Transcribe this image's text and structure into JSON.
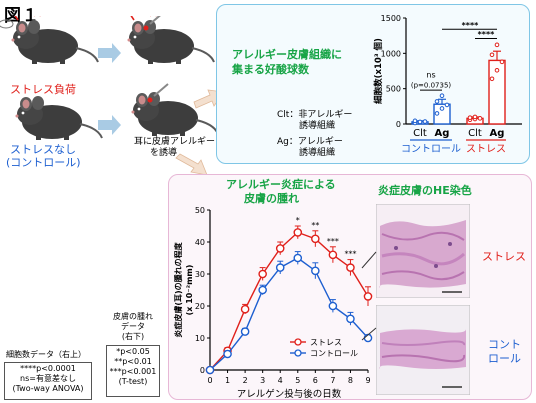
{
  "figure_label": "図１",
  "left_panel": {
    "stress_label": "ストレス負荷",
    "control_label_1": "ストレスなし",
    "control_label_2": "(コントロール)",
    "induction_label_1": "耳に皮膚アレルギー",
    "induction_label_2": "を誘導"
  },
  "top_panel": {
    "title_1": "アレルギー皮膚組織に",
    "title_2": "集まる好酸球数",
    "clt_def_1": "Clt：非アレルギー",
    "clt_def_2": "誘導組織",
    "ag_def_1": "Ag：アレルギー",
    "ag_def_2": "誘導組織",
    "chart_data": {
      "type": "bar",
      "ylabel": "細胞数(x10³ 個)",
      "ylim": [
        0,
        1500
      ],
      "yticks": [
        "0",
        "500",
        "1000",
        "1500"
      ],
      "groups": [
        {
          "name": "コントロール",
          "color": "#1d5fd0",
          "categories": [
            "Clt",
            "Ag"
          ],
          "values": [
            30,
            280
          ],
          "errors": [
            15,
            70
          ],
          "points": [
            [
              15,
              25,
              35,
              45,
              30
            ],
            [
              150,
              220,
              270,
              320,
              400
            ]
          ]
        },
        {
          "name": "ストレス",
          "color": "#e0201b",
          "categories": [
            "Clt",
            "Ag"
          ],
          "values": [
            80,
            900
          ],
          "errors": [
            20,
            130
          ],
          "points": [
            [
              60,
              70,
              80,
              90,
              100
            ],
            [
              640,
              760,
              880,
              980,
              1120
            ]
          ]
        }
      ],
      "annotations": {
        "ns": "ns",
        "ns_p": "(p=0.0735)",
        "sig_1": "****",
        "sig_2": "****"
      }
    }
  },
  "bottom_panel": {
    "title_1": "アレルギー炎症による",
    "title_2": "皮膚の腫れ",
    "he_title": "炎症皮膚のHE染色",
    "he_stress": "ストレス",
    "he_control_1": "コント",
    "he_control_2": "ロール",
    "chart_data": {
      "type": "line",
      "ylabel_1": "炎症皮膚(耳)の腫れの程度",
      "ylabel_2": "(x 10⁻²mm)",
      "xlabel": "アレルゲン投与後の日数",
      "x": [
        0,
        1,
        2,
        3,
        4,
        5,
        6,
        7,
        8,
        9
      ],
      "xticks": [
        "0",
        "1",
        "2",
        "3",
        "4",
        "5",
        "6",
        "7",
        "8",
        "9"
      ],
      "ylim": [
        0,
        50
      ],
      "yticks": [
        "0",
        "10",
        "20",
        "30",
        "40",
        "50"
      ],
      "series": [
        {
          "name": "ストレス",
          "color": "#e0201b",
          "values": [
            0,
            6,
            19,
            30,
            38,
            43,
            41,
            36,
            32,
            23
          ],
          "errors": [
            0,
            1,
            1.5,
            2,
            2,
            2,
            2.5,
            2.5,
            2.5,
            3
          ]
        },
        {
          "name": "コントロール",
          "color": "#1d5fd0",
          "values": [
            0,
            5,
            12,
            25,
            32,
            35,
            31,
            20,
            16,
            10
          ],
          "errors": [
            0,
            1,
            1,
            1.5,
            2,
            2,
            2.5,
            2,
            2,
            1
          ]
        }
      ],
      "significance": [
        {
          "x": 5,
          "label": "*"
        },
        {
          "x": 6,
          "label": "**"
        },
        {
          "x": 7,
          "label": "***"
        },
        {
          "x": 8,
          "label": "***"
        }
      ]
    }
  },
  "notes": {
    "cell_title": "細胞数データ（右上）",
    "cell_1": "****p<0.0001",
    "cell_2": "ns=有意差なし",
    "cell_3": "(Two-way ANOVA)",
    "swell_title_1": "皮膚の腫れ",
    "swell_title_2": "データ",
    "swell_title_3": "(右下)",
    "swell_1": "*p<0.05",
    "swell_2": "**p<0.01",
    "swell_3": "***p<0.001",
    "swell_4": "(T-test)"
  }
}
